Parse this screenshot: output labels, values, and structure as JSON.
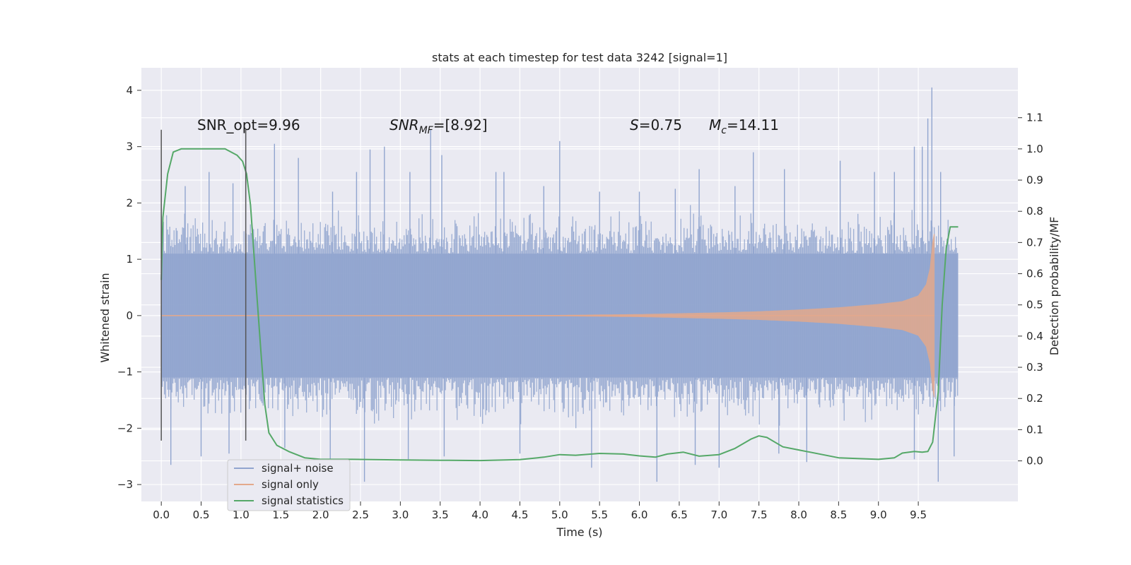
{
  "chart_data": {
    "type": "line",
    "title": "stats at each timestep for test data 3242 [signal=1]",
    "xlabel": "Time (s)",
    "ylabel": "Whitened strain",
    "ylabel_right": "Detection probability/MF",
    "xlim": [
      -0.25,
      10.75
    ],
    "ylim": [
      -3.3,
      4.4
    ],
    "ylim_right": [
      -0.13,
      1.26
    ],
    "x_ticks": [
      0.0,
      0.5,
      1.0,
      1.5,
      2.0,
      2.5,
      3.0,
      3.5,
      4.0,
      4.5,
      5.0,
      5.5,
      6.0,
      6.5,
      7.0,
      7.5,
      8.0,
      8.5,
      9.0,
      9.5
    ],
    "x_tick_labels": [
      "0.0",
      "0.5",
      "1.0",
      "1.5",
      "2.0",
      "2.5",
      "3.0",
      "3.5",
      "4.0",
      "4.5",
      "5.0",
      "5.5",
      "6.0",
      "6.5",
      "7.0",
      "7.5",
      "8.0",
      "8.5",
      "9.0",
      "9.5"
    ],
    "y_ticks": [
      4,
      3,
      2,
      1,
      0,
      -1,
      -2,
      -3
    ],
    "y_tick_labels": [
      "4",
      "3",
      "2",
      "1",
      "0",
      "−1",
      "−2",
      "−3"
    ],
    "y_right_ticks": [
      1.1,
      1.0,
      0.9,
      0.8,
      0.7,
      0.6,
      0.5,
      0.4,
      0.3,
      0.2,
      0.1,
      0.0
    ],
    "y_right_tick_labels": [
      "1.1",
      "1.0",
      "0.9",
      "0.8",
      "0.7",
      "0.6",
      "0.5",
      "0.4",
      "0.3",
      "0.2",
      "0.1",
      "0.0"
    ],
    "grid": true,
    "legend_position": "bottom-left",
    "colors": {
      "background": "#eaeaf2",
      "grid": "#ffffff",
      "signal_noise": "#91a5cf",
      "signal_only": "#e3a98c",
      "signal_stats": "#55a868",
      "vline": "#555555"
    },
    "annotations": {
      "snr_opt": "SNR_opt=9.96",
      "snr_mf_label": "SNR",
      "snr_mf_sub": "MF",
      "snr_mf_value": "=[8.92]",
      "s_label": "S",
      "s_value": "=0.75",
      "mc_label": "M",
      "mc_sub": "c",
      "mc_value": "=14.11"
    },
    "vertical_lines": [
      {
        "x": 0.0,
        "y_range": [
          -2.22,
          3.3
        ]
      },
      {
        "x": 1.06,
        "y_range": [
          -2.22,
          3.3
        ]
      }
    ],
    "noise_envelope": {
      "x_range": [
        0.0,
        10.0
      ],
      "typical_amplitude": 1.1,
      "peak_highs": [
        {
          "x": 0.0,
          "y": 1.9
        },
        {
          "x": 0.3,
          "y": 2.3
        },
        {
          "x": 0.6,
          "y": 2.55
        },
        {
          "x": 0.9,
          "y": 2.35
        },
        {
          "x": 1.42,
          "y": 3.05
        },
        {
          "x": 1.72,
          "y": 2.8
        },
        {
          "x": 2.15,
          "y": 2.2
        },
        {
          "x": 2.45,
          "y": 2.55
        },
        {
          "x": 2.62,
          "y": 2.95
        },
        {
          "x": 2.8,
          "y": 3.0
        },
        {
          "x": 3.12,
          "y": 2.55
        },
        {
          "x": 3.38,
          "y": 3.3
        },
        {
          "x": 3.52,
          "y": 2.85
        },
        {
          "x": 4.2,
          "y": 2.55
        },
        {
          "x": 4.3,
          "y": 2.55
        },
        {
          "x": 4.8,
          "y": 2.3
        },
        {
          "x": 5.0,
          "y": 3.1
        },
        {
          "x": 5.5,
          "y": 2.2
        },
        {
          "x": 6.0,
          "y": 2.2
        },
        {
          "x": 6.45,
          "y": 2.25
        },
        {
          "x": 6.75,
          "y": 2.6
        },
        {
          "x": 7.2,
          "y": 2.3
        },
        {
          "x": 7.43,
          "y": 2.9
        },
        {
          "x": 7.82,
          "y": 2.6
        },
        {
          "x": 8.52,
          "y": 2.75
        },
        {
          "x": 8.95,
          "y": 2.55
        },
        {
          "x": 9.2,
          "y": 2.55
        },
        {
          "x": 9.45,
          "y": 3.0
        },
        {
          "x": 9.55,
          "y": 3.0
        },
        {
          "x": 9.62,
          "y": 3.5
        },
        {
          "x": 9.67,
          "y": 4.05
        },
        {
          "x": 9.78,
          "y": 2.55
        }
      ],
      "peak_lows": [
        {
          "x": 0.12,
          "y": -2.65
        },
        {
          "x": 0.5,
          "y": -2.5
        },
        {
          "x": 0.85,
          "y": -2.45
        },
        {
          "x": 1.55,
          "y": -2.35
        },
        {
          "x": 2.12,
          "y": -2.6
        },
        {
          "x": 2.55,
          "y": -2.95
        },
        {
          "x": 3.1,
          "y": -2.55
        },
        {
          "x": 3.55,
          "y": -2.5
        },
        {
          "x": 4.5,
          "y": -2.45
        },
        {
          "x": 5.4,
          "y": -2.7
        },
        {
          "x": 6.22,
          "y": -2.95
        },
        {
          "x": 6.7,
          "y": -2.65
        },
        {
          "x": 7.0,
          "y": -2.7
        },
        {
          "x": 7.75,
          "y": -2.45
        },
        {
          "x": 8.1,
          "y": -2.6
        },
        {
          "x": 9.45,
          "y": -2.55
        },
        {
          "x": 9.75,
          "y": -2.95
        },
        {
          "x": 9.95,
          "y": -2.5
        }
      ]
    },
    "series": [
      {
        "name": "signal+ noise",
        "kind": "noise_band",
        "x_range": [
          0.0,
          10.0
        ]
      },
      {
        "name": "signal only",
        "kind": "chirp_envelope",
        "x": [
          0.0,
          5.0,
          6.0,
          7.0,
          7.5,
          8.0,
          8.5,
          9.0,
          9.3,
          9.5,
          9.6,
          9.65,
          9.68,
          9.7
        ],
        "amplitude": [
          0.0,
          0.005,
          0.02,
          0.05,
          0.07,
          0.1,
          0.14,
          0.2,
          0.25,
          0.35,
          0.55,
          0.85,
          1.3,
          1.45
        ]
      },
      {
        "name": "signal statistics",
        "kind": "probability",
        "axis": "right",
        "x": [
          0.0,
          0.02,
          0.08,
          0.15,
          0.25,
          0.4,
          0.6,
          0.8,
          0.95,
          1.02,
          1.07,
          1.12,
          1.18,
          1.25,
          1.3,
          1.35,
          1.45,
          1.6,
          1.8,
          2.0,
          2.4,
          3.0,
          3.5,
          4.0,
          4.5,
          4.8,
          5.0,
          5.2,
          5.5,
          5.8,
          6.0,
          6.2,
          6.35,
          6.55,
          6.75,
          7.0,
          7.2,
          7.4,
          7.5,
          7.6,
          7.8,
          8.0,
          8.5,
          9.0,
          9.2,
          9.3,
          9.45,
          9.55,
          9.62,
          9.68,
          9.75,
          9.8,
          9.85,
          9.9,
          9.95,
          10.0
        ],
        "values": [
          0.58,
          0.78,
          0.92,
          0.99,
          1.0,
          1.0,
          1.0,
          1.0,
          0.98,
          0.96,
          0.92,
          0.82,
          0.6,
          0.35,
          0.18,
          0.09,
          0.05,
          0.03,
          0.01,
          0.005,
          0.005,
          0.003,
          0.002,
          0.001,
          0.004,
          0.012,
          0.02,
          0.018,
          0.024,
          0.022,
          0.016,
          0.012,
          0.022,
          0.028,
          0.015,
          0.02,
          0.04,
          0.07,
          0.08,
          0.075,
          0.045,
          0.035,
          0.01,
          0.005,
          0.01,
          0.025,
          0.03,
          0.028,
          0.03,
          0.06,
          0.22,
          0.5,
          0.68,
          0.75,
          0.75,
          0.75
        ]
      }
    ]
  }
}
